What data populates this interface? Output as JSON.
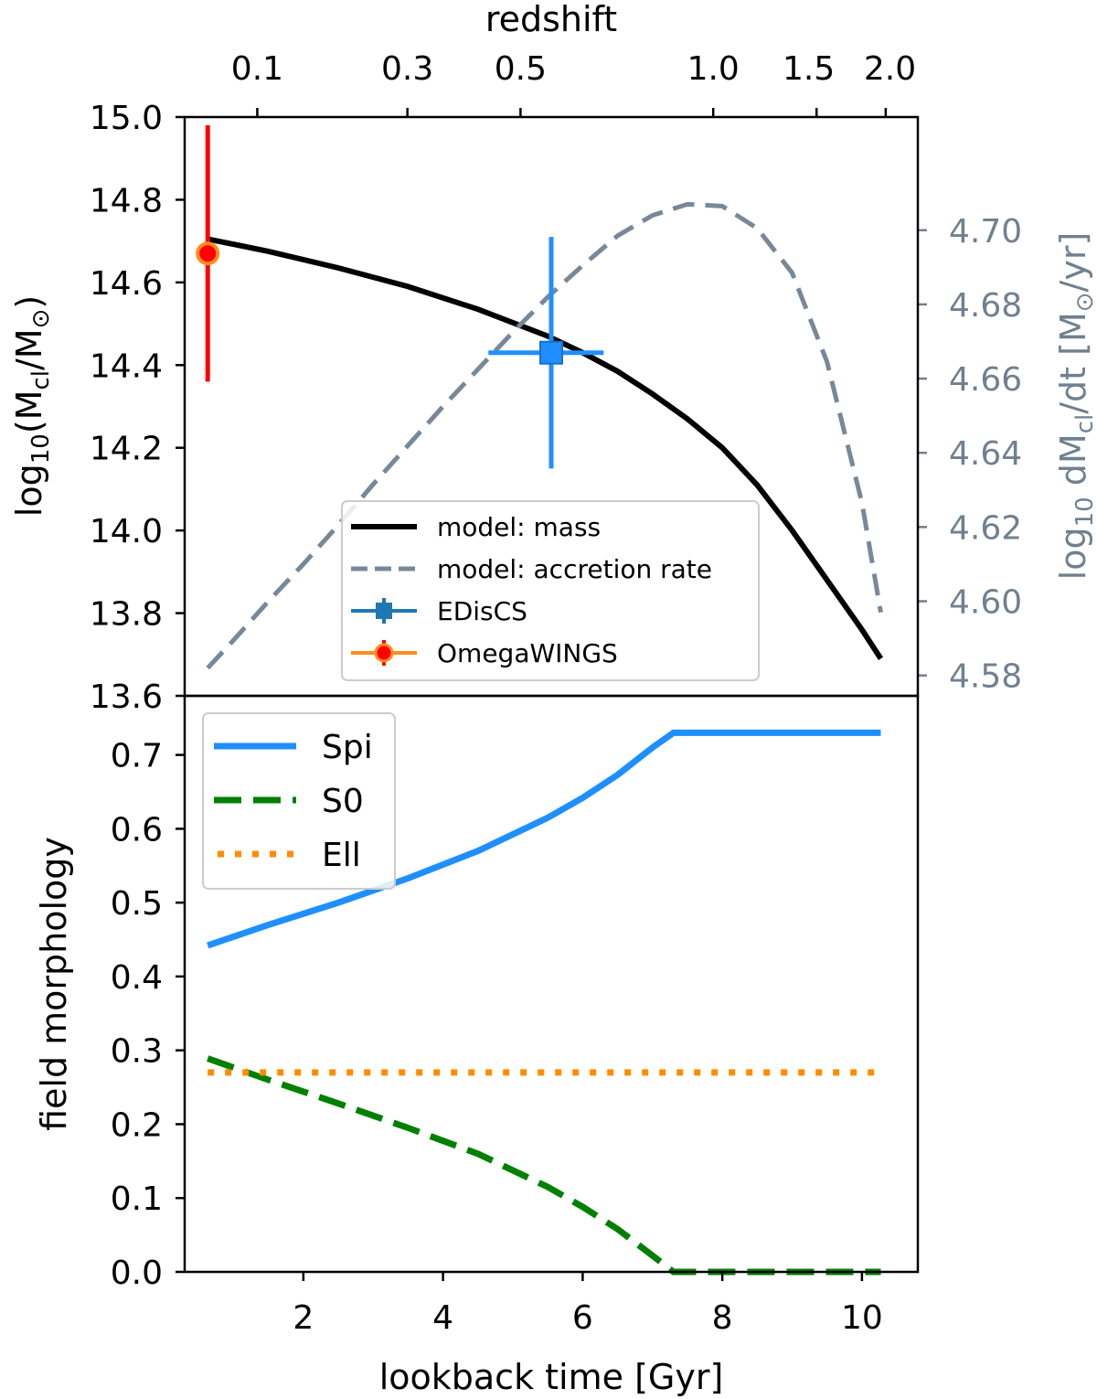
{
  "chart_data": [
    {
      "id": "top",
      "type": "line",
      "top_axis": {
        "label": "redshift",
        "ticks": [
          {
            "label": "0.1",
            "x": 1.34
          },
          {
            "label": "0.3",
            "x": 3.49
          },
          {
            "label": "0.5",
            "x": 5.11
          },
          {
            "label": "1.0",
            "x": 7.87
          },
          {
            "label": "1.5",
            "x": 9.35
          },
          {
            "label": "2.0",
            "x": 10.34
          }
        ]
      },
      "xlim": [
        0.3,
        10.8
      ],
      "left_axis": {
        "ylabel": "log10(Mcl/M⊙)",
        "ylabel_parts": {
          "pre": "log",
          "sub1": "10",
          "mid": "(M",
          "sub2": "cl",
          "mid2": "/M",
          "sub3": "⊙",
          "post": ")"
        },
        "ylim": [
          13.6,
          15.0
        ],
        "ticks": [
          "13.6",
          "13.8",
          "14.0",
          "14.2",
          "14.4",
          "14.6",
          "14.8",
          "15.0"
        ]
      },
      "right_axis": {
        "ylabel": "log10 dMcl/dt [M⊙/yr]",
        "ylabel_parts": {
          "pre": "log",
          "sub1": "10",
          "mid": " dM",
          "sub2": "cl",
          "mid2": "/dt [M",
          "sub3": "⊙",
          "post": "/yr]"
        },
        "ylim": [
          4.5745,
          4.7305
        ],
        "ticks": [
          "4.58",
          "4.60",
          "4.62",
          "4.64",
          "4.66",
          "4.68",
          "4.70"
        ],
        "color": "#708090"
      },
      "series": [
        {
          "name": "model: mass",
          "axis": "left",
          "color": "#000000",
          "style": "solid",
          "x": [
            0.63,
            1.5,
            2.5,
            3.5,
            4.5,
            5.5,
            6.0,
            6.5,
            7.0,
            7.5,
            8.0,
            8.5,
            9.0,
            9.5,
            10.0,
            10.27
          ],
          "y": [
            14.705,
            14.675,
            14.635,
            14.59,
            14.535,
            14.47,
            14.43,
            14.385,
            14.33,
            14.27,
            14.2,
            14.11,
            14.0,
            13.88,
            13.76,
            13.69
          ]
        },
        {
          "name": "model: accretion rate",
          "axis": "right",
          "color": "#778899",
          "style": "dashed",
          "x": [
            0.63,
            1.0,
            1.5,
            2.0,
            2.5,
            3.0,
            3.5,
            4.0,
            4.5,
            5.0,
            5.5,
            6.0,
            6.5,
            7.0,
            7.5,
            8.0,
            8.5,
            9.0,
            9.5,
            10.0,
            10.27
          ],
          "y": [
            4.582,
            4.5895,
            4.6,
            4.61,
            4.6205,
            4.6315,
            4.642,
            4.6525,
            4.6625,
            4.6725,
            4.682,
            4.6905,
            4.6985,
            4.704,
            4.707,
            4.7065,
            4.7005,
            4.6885,
            4.6645,
            4.6265,
            4.597
          ]
        }
      ],
      "points": [
        {
          "name": "EDisCS",
          "x": 5.55,
          "y": 14.43,
          "xerr": [
            4.65,
            6.3
          ],
          "yerr": [
            14.15,
            14.71
          ],
          "color": "#1f8fff",
          "marker": "square"
        },
        {
          "name": "OmegaWINGS",
          "x": 0.63,
          "y": 14.67,
          "yerr": [
            14.36,
            14.98
          ],
          "color": "#ff0000",
          "marker_edge": "#ff8c1a",
          "marker": "circle"
        }
      ],
      "legend": {
        "placement": "lower-center",
        "entries": [
          "model: mass",
          "model: accretion rate",
          "EDisCS",
          "OmegaWINGS"
        ]
      }
    },
    {
      "id": "bottom",
      "type": "line",
      "xlabel": "lookback time [Gyr]",
      "xlim": [
        0.3,
        10.8
      ],
      "xticks": [
        "2",
        "4",
        "6",
        "8",
        "10"
      ],
      "ylabel": "field morphology",
      "ylim": [
        0.0,
        0.78
      ],
      "yticks": [
        "0.0",
        "0.1",
        "0.2",
        "0.3",
        "0.4",
        "0.5",
        "0.6",
        "0.7"
      ],
      "series": [
        {
          "name": "Spi",
          "color": "#1f8fff",
          "style": "solid",
          "x": [
            0.63,
            1.5,
            2.5,
            3.5,
            4.5,
            5.5,
            6.0,
            6.5,
            7.0,
            7.3,
            8.0,
            9.0,
            10.0,
            10.27
          ],
          "y": [
            0.442,
            0.47,
            0.5,
            0.533,
            0.57,
            0.615,
            0.642,
            0.673,
            0.71,
            0.73,
            0.73,
            0.73,
            0.73,
            0.73
          ]
        },
        {
          "name": "S0",
          "color": "#008000",
          "style": "dashed",
          "x": [
            0.63,
            1.5,
            2.5,
            3.5,
            4.5,
            5.5,
            6.0,
            6.5,
            7.0,
            7.3,
            8.0,
            9.0,
            10.0,
            10.27
          ],
          "y": [
            0.289,
            0.26,
            0.228,
            0.195,
            0.16,
            0.115,
            0.088,
            0.058,
            0.022,
            0.0,
            0.0,
            0.0,
            0.0,
            0.0
          ]
        },
        {
          "name": "Ell",
          "color": "#ff8c00",
          "style": "dotted",
          "x": [
            0.63,
            10.27
          ],
          "y": [
            0.27,
            0.27
          ]
        }
      ],
      "legend": {
        "placement": "top-left",
        "entries": [
          "Spi",
          "S0",
          "Ell"
        ]
      }
    }
  ]
}
